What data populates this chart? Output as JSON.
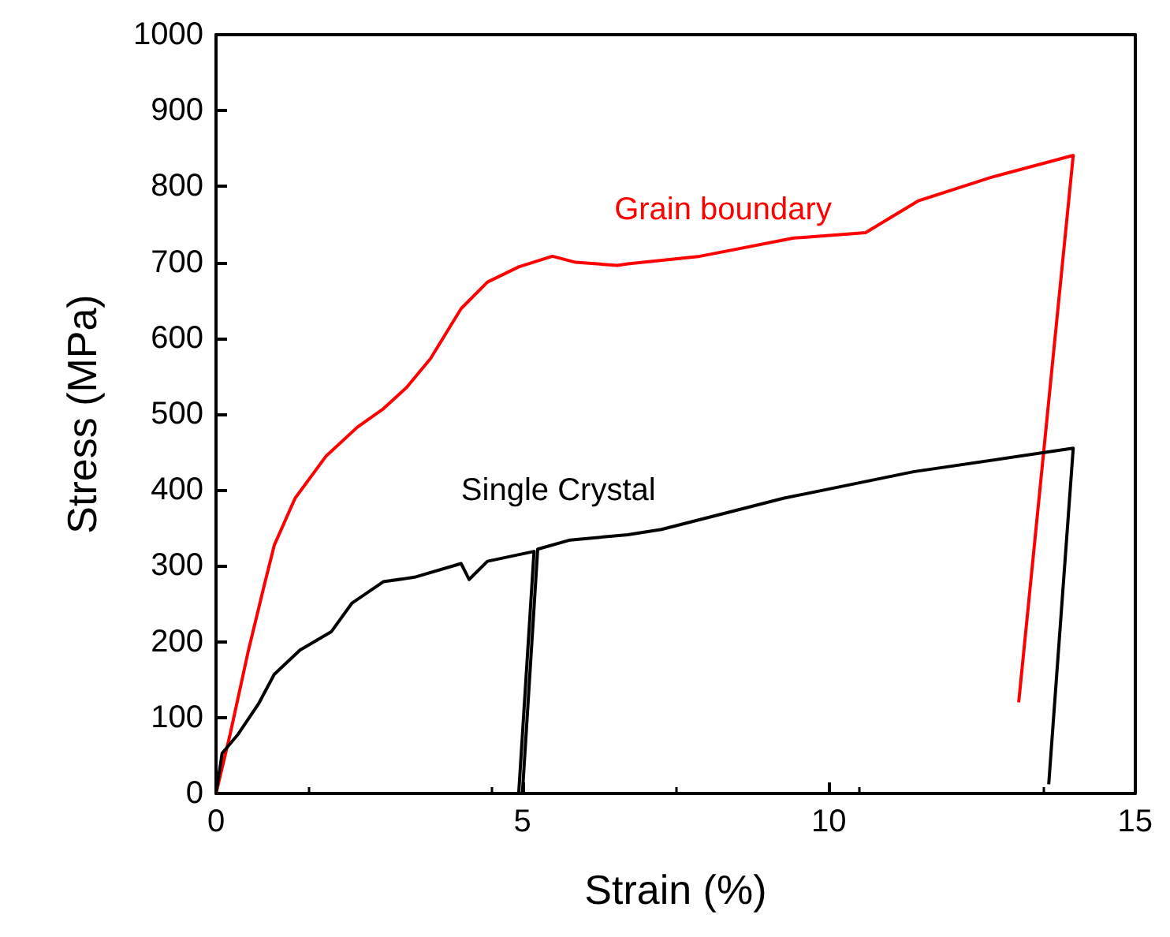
{
  "chart_data": {
    "type": "line",
    "xlabel": "Strain (%)",
    "ylabel": "Stress (MPa)",
    "xlim": [
      0,
      15
    ],
    "xticks": [
      0,
      5,
      10,
      15
    ],
    "ylim": [
      0,
      1000
    ],
    "yticks": [
      0,
      100,
      200,
      300,
      400,
      500,
      600,
      700,
      800,
      900,
      1000
    ],
    "grid": false,
    "legend": false,
    "marker": "none",
    "line_style": "solid",
    "series": [
      {
        "name": "Grain boundary",
        "color": "#ff0000",
        "x": [
          0,
          0.23,
          0.53,
          0.78,
          0.95,
          1.29,
          1.8,
          2.31,
          2.73,
          3.11,
          3.5,
          4.0,
          4.43,
          4.94,
          5.49,
          5.87,
          6.55,
          6.72,
          7.9,
          9.43,
          10.6,
          11.46,
          12.65,
          13.99,
          13.1
        ],
        "values": [
          0,
          78,
          189,
          272,
          327,
          389,
          445,
          483,
          507,
          535,
          573,
          639,
          674,
          694,
          708,
          700,
          696,
          698,
          708,
          732,
          739,
          781,
          812,
          841,
          120
        ]
      },
      {
        "name": "Single Crystal",
        "color": "#000000",
        "x": [
          0,
          0.1,
          0.36,
          0.7,
          0.95,
          1.37,
          1.88,
          2.22,
          2.73,
          3.24,
          4.0,
          4.13,
          4.43,
          5.19,
          4.94,
          5.0,
          5.25,
          5.78,
          6.72,
          7.27,
          9.26,
          11.38,
          13.99,
          13.59
        ],
        "values": [
          0,
          53,
          78,
          119,
          157,
          189,
          213,
          251,
          279,
          285,
          303,
          282,
          306,
          319,
          0,
          0,
          322,
          334,
          341,
          348,
          389,
          424,
          455,
          12
        ]
      }
    ]
  }
}
